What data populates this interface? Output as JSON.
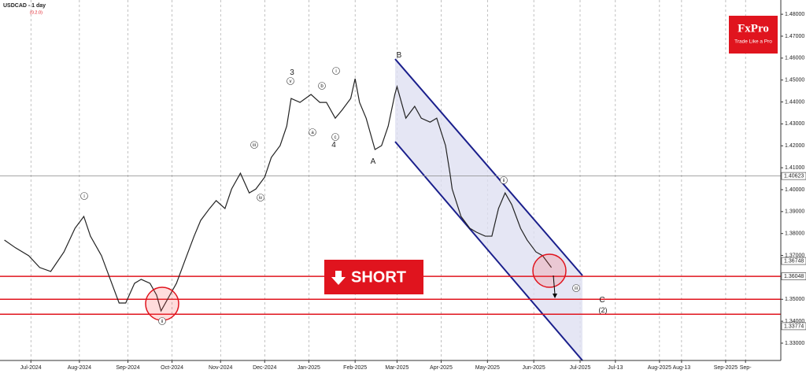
{
  "chart_data": {
    "type": "line",
    "title": "USDCAD - 1 day",
    "subtitle": "(0.2.0)",
    "logo": {
      "brand": "FxPro",
      "tagline": "Trade Like a Pro"
    },
    "signal": "SHORT",
    "series": [
      {
        "name": "USDCAD",
        "color": "#222222",
        "x": [
          2,
          7,
          13,
          18,
          23,
          29,
          34,
          38,
          41,
          46,
          50,
          54,
          57,
          61,
          64,
          68,
          71,
          73,
          77,
          80,
          84,
          88,
          91,
          95,
          98,
          102,
          105,
          109,
          113,
          116,
          120,
          123,
          127,
          130,
          132,
          136,
          141,
          145,
          148,
          152,
          155,
          159,
          161,
          163,
          166,
          170,
          173,
          176,
          179,
          180,
          184,
          188,
          191,
          195,
          198,
          202,
          204,
          205,
          209,
          213,
          216,
          220,
          223,
          226,
          229,
          232,
          236,
          239,
          243,
          246,
          250
        ],
        "values": [
          1.377,
          1.3735,
          1.3699,
          1.3645,
          1.3627,
          1.3716,
          1.3824,
          1.3878,
          1.3788,
          1.3699,
          1.3591,
          1.3483,
          1.3483,
          1.3573,
          1.3591,
          1.3573,
          1.3519,
          1.3447,
          1.3519,
          1.3573,
          1.3681,
          1.3788,
          1.386,
          1.3914,
          1.395,
          1.3914,
          1.4003,
          1.4075,
          1.3985,
          1.4003,
          1.4057,
          1.4147,
          1.4201,
          1.429,
          1.4416,
          1.4398,
          1.4434,
          1.4398,
          1.4398,
          1.4326,
          1.4362,
          1.4416,
          1.4506,
          1.4398,
          1.4326,
          1.4183,
          1.4201,
          1.429,
          1.4434,
          1.447,
          1.4326,
          1.438,
          1.4326,
          1.4308,
          1.4326,
          1.4201,
          1.4075,
          1.4003,
          1.3878,
          1.3824,
          1.3806,
          1.3788,
          1.3788,
          1.3914,
          1.3985,
          1.3932,
          1.3824,
          1.377,
          1.3716,
          1.3699,
          1.3645
        ]
      }
    ],
    "xlim": [
      0,
      354
    ],
    "xticks": [
      {
        "value": 14,
        "label": "Jul-2024"
      },
      {
        "value": 36,
        "label": "Aug-2024"
      },
      {
        "value": 58,
        "label": "Sep-2024"
      },
      {
        "value": 78,
        "label": "Oct-2024"
      },
      {
        "value": 100,
        "label": "Nov-2024"
      },
      {
        "value": 120,
        "label": "Dec-2024"
      },
      {
        "value": 140,
        "label": "Jan-2025"
      },
      {
        "value": 161,
        "label": "Feb-2025"
      },
      {
        "value": 180,
        "label": "Mar-2025"
      },
      {
        "value": 200,
        "label": "Apr-2025"
      },
      {
        "value": 221,
        "label": "May-2025"
      },
      {
        "value": 242,
        "label": "Jun-2025"
      },
      {
        "value": 263,
        "label": "Jul-2025"
      },
      {
        "value": 279,
        "label": "Jul-13"
      },
      {
        "value": 299,
        "label": "Aug-2025"
      },
      {
        "value": 309,
        "label": "Aug-13"
      },
      {
        "value": 329,
        "label": "Sep-2025"
      },
      {
        "value": 338,
        "label": "Sep-"
      }
    ],
    "ylim": [
      1.3221,
      1.4865
    ],
    "yticks": [
      {
        "value": 1.48,
        "label": "1.48000"
      },
      {
        "value": 1.47,
        "label": "1.47000"
      },
      {
        "value": 1.46,
        "label": "1.46000"
      },
      {
        "value": 1.45,
        "label": "1.45000"
      },
      {
        "value": 1.44,
        "label": "1.44000"
      },
      {
        "value": 1.43,
        "label": "1.43000"
      },
      {
        "value": 1.42,
        "label": "1.42000"
      },
      {
        "value": 1.41,
        "label": "1.41000"
      },
      {
        "value": 1.4,
        "label": "1.40000"
      },
      {
        "value": 1.39,
        "label": "1.39000"
      },
      {
        "value": 1.38,
        "label": "1.38000"
      },
      {
        "value": 1.37,
        "label": "1.37000"
      },
      {
        "value": 1.35,
        "label": "1.35000"
      },
      {
        "value": 1.34,
        "label": "1.34000"
      },
      {
        "value": 1.33,
        "label": "1.33000"
      }
    ],
    "grid": "x",
    "hlines": [
      {
        "value": 1.40623,
        "color": "#888888"
      },
      {
        "value": 1.36048,
        "color": "#e0141e"
      },
      {
        "value": 1.35,
        "color": "#e0141e"
      },
      {
        "value": 1.3432,
        "color": "#e0141e"
      }
    ],
    "price_tags": [
      1.40623,
      1.36748,
      1.36048,
      1.33774
    ],
    "annotations": [
      "3",
      "4",
      "A",
      "B",
      "C",
      "(2)",
      "i",
      "ii",
      "iii",
      "iv",
      "v",
      "a",
      "b",
      "c",
      "i",
      "ii",
      "iii"
    ]
  }
}
